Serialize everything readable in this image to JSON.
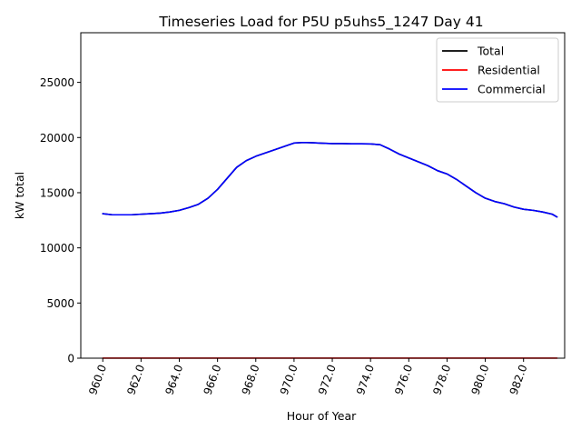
{
  "chart_data": {
    "type": "line",
    "title": "Timeseries Load for P5U p5uhs5_1247  Day 41",
    "xlabel": "Hour of Year",
    "ylabel": "kW total",
    "xlim": [
      958.85,
      984.15
    ],
    "ylim": [
      0,
      29500
    ],
    "xticks": [
      960,
      962,
      964,
      966,
      968,
      970,
      972,
      974,
      976,
      978,
      980,
      982
    ],
    "xtick_labels": [
      "960.0",
      "962.0",
      "964.0",
      "966.0",
      "968.0",
      "970.0",
      "972.0",
      "974.0",
      "976.0",
      "978.0",
      "980.0",
      "982.0"
    ],
    "yticks": [
      0,
      5000,
      10000,
      15000,
      20000,
      25000
    ],
    "ytick_labels": [
      "0",
      "5000",
      "10000",
      "15000",
      "20000",
      "25000"
    ],
    "legend_position": "top-right",
    "x": [
      960.0,
      960.5,
      961.0,
      961.5,
      962.0,
      962.5,
      963.0,
      963.5,
      964.0,
      964.5,
      965.0,
      965.5,
      966.0,
      966.5,
      967.0,
      967.5,
      968.0,
      968.5,
      969.0,
      969.5,
      970.0,
      970.5,
      971.0,
      971.5,
      972.0,
      972.5,
      973.0,
      973.5,
      974.0,
      974.5,
      975.0,
      975.5,
      976.0,
      976.5,
      977.0,
      977.5,
      978.0,
      978.5,
      979.0,
      979.5,
      980.0,
      980.5,
      981.0,
      981.5,
      982.0,
      982.5,
      983.0,
      983.5,
      983.75
    ],
    "series": [
      {
        "name": "Total",
        "color": "#000000",
        "values": [
          13100,
          13000,
          13000,
          13000,
          13050,
          13100,
          13150,
          13250,
          13400,
          13650,
          13950,
          14500,
          15300,
          16300,
          17300,
          17900,
          18300,
          18600,
          18900,
          19200,
          19500,
          19550,
          19520,
          19480,
          19450,
          19450,
          19430,
          19430,
          19420,
          19350,
          18950,
          18500,
          18150,
          17800,
          17450,
          17000,
          16700,
          16200,
          15600,
          15000,
          14500,
          14200,
          14000,
          13700,
          13500,
          13400,
          13250,
          13050,
          12800
        ]
      },
      {
        "name": "Residential",
        "color": "#ff0000",
        "values": [
          5,
          5,
          5,
          5,
          5,
          5,
          5,
          5,
          5,
          5,
          5,
          5,
          5,
          5,
          5,
          5,
          5,
          5,
          5,
          5,
          5,
          5,
          5,
          5,
          5,
          5,
          5,
          5,
          5,
          5,
          5,
          5,
          5,
          5,
          5,
          5,
          5,
          5,
          5,
          5,
          5,
          5,
          5,
          5,
          5,
          5,
          5,
          5,
          5
        ]
      },
      {
        "name": "Commercial",
        "color": "#0000ff",
        "values": [
          13100,
          13000,
          13000,
          13000,
          13050,
          13100,
          13150,
          13250,
          13400,
          13650,
          13950,
          14500,
          15300,
          16300,
          17300,
          17900,
          18300,
          18600,
          18900,
          19200,
          19500,
          19550,
          19520,
          19480,
          19450,
          19450,
          19430,
          19430,
          19420,
          19350,
          18950,
          18500,
          18150,
          17800,
          17450,
          17000,
          16700,
          16200,
          15600,
          15000,
          14500,
          14200,
          14000,
          13700,
          13500,
          13400,
          13250,
          13050,
          12800
        ]
      }
    ]
  }
}
